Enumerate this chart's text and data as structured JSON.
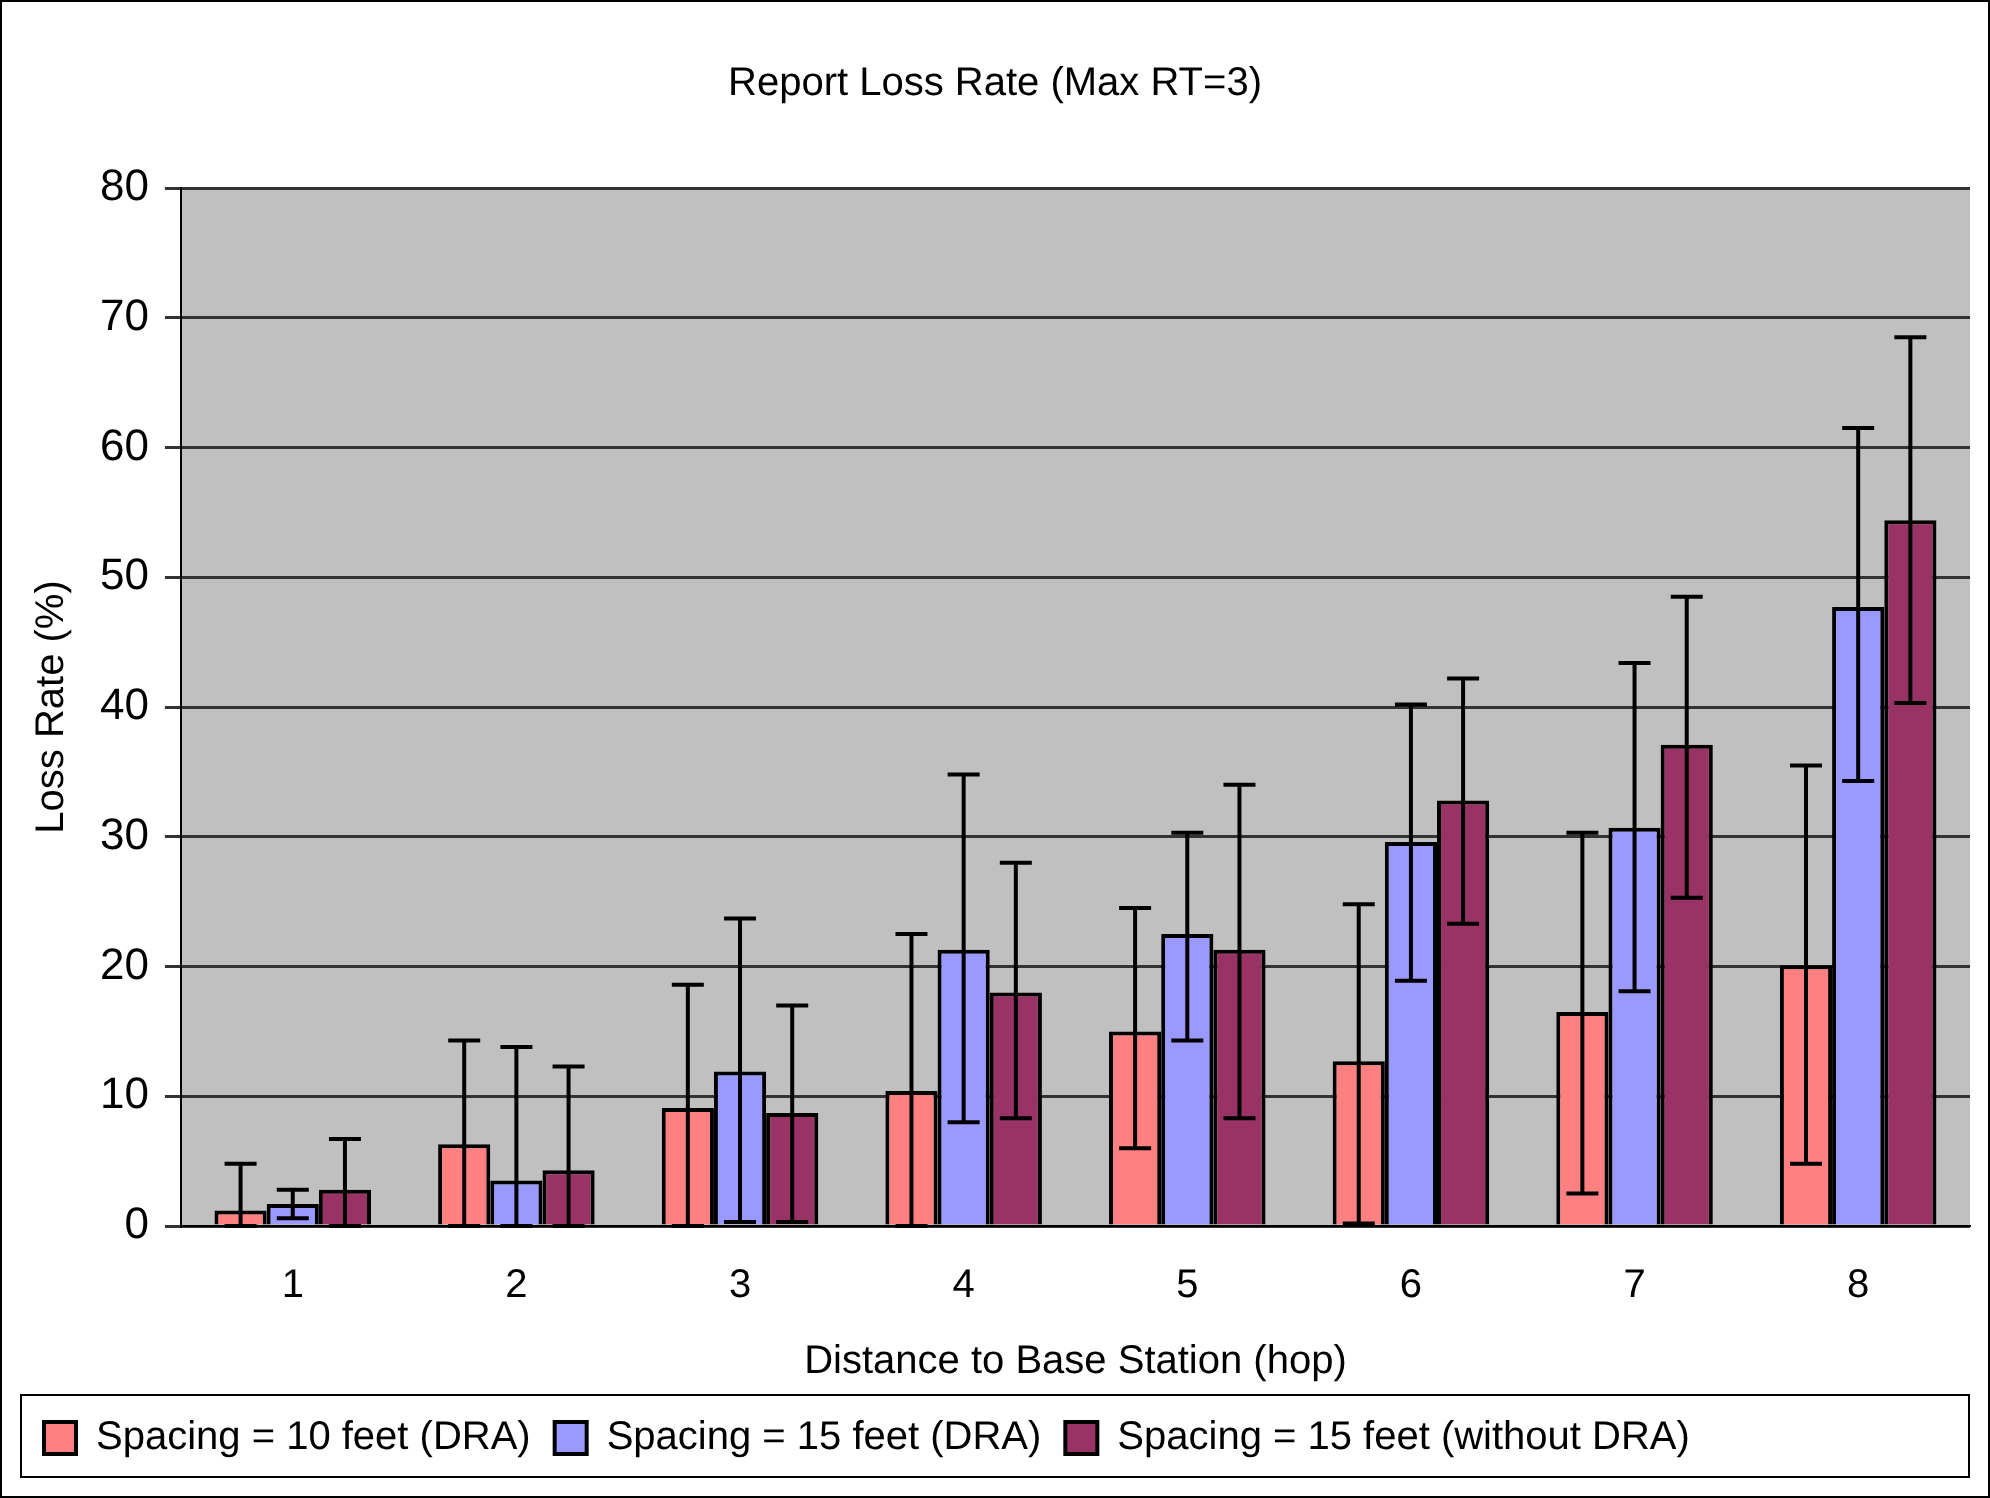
{
  "chart_data": {
    "type": "bar",
    "title": "Report Loss Rate (Max RT=3)",
    "xlabel": "Distance to Base Station (hop)",
    "ylabel": "Loss Rate (%)",
    "categories": [
      "1",
      "2",
      "3",
      "4",
      "5",
      "6",
      "7",
      "8"
    ],
    "series": [
      {
        "name": "Spacing = 10 feet (DRA)",
        "color": "#ff8080",
        "values": [
          1.2,
          6.3,
          9.1,
          10.4,
          15,
          12.7,
          16.5,
          20.1
        ],
        "errors": [
          [
            0,
            4.8
          ],
          [
            0,
            14.3
          ],
          [
            0,
            18.6
          ],
          [
            0,
            22.5
          ],
          [
            6,
            24.5
          ],
          [
            0.2,
            24.8
          ],
          [
            2.5,
            30.3
          ],
          [
            4.8,
            35.5
          ]
        ]
      },
      {
        "name": "Spacing = 15 feet (DRA)",
        "color": "#9999ff",
        "values": [
          1.7,
          3.5,
          11.9,
          21.3,
          22.5,
          29.6,
          30.7,
          47.7
        ],
        "errors": [
          [
            0.6,
            2.8
          ],
          [
            0,
            13.8
          ],
          [
            0.3,
            23.7
          ],
          [
            8,
            34.8
          ],
          [
            14.3,
            30.3
          ],
          [
            18.9,
            40.2
          ],
          [
            18.1,
            43.4
          ],
          [
            34.3,
            61.5
          ]
        ]
      },
      {
        "name": "Spacing = 15 feet (without DRA)",
        "color": "#993366",
        "values": [
          2.8,
          4.3,
          8.7,
          18,
          21.3,
          32.8,
          37.1,
          54.4
        ],
        "errors": [
          [
            0,
            6.7
          ],
          [
            0,
            12.3
          ],
          [
            0.3,
            17
          ],
          [
            8.3,
            28
          ],
          [
            8.3,
            34
          ],
          [
            23.3,
            42.2
          ],
          [
            25.3,
            48.5
          ],
          [
            40.3,
            68.5
          ]
        ]
      }
    ],
    "ylim": [
      0,
      80
    ],
    "yticks": [
      0,
      10,
      20,
      30,
      40,
      50,
      60,
      70,
      80
    ],
    "grid": "y",
    "legend": "bottom"
  }
}
